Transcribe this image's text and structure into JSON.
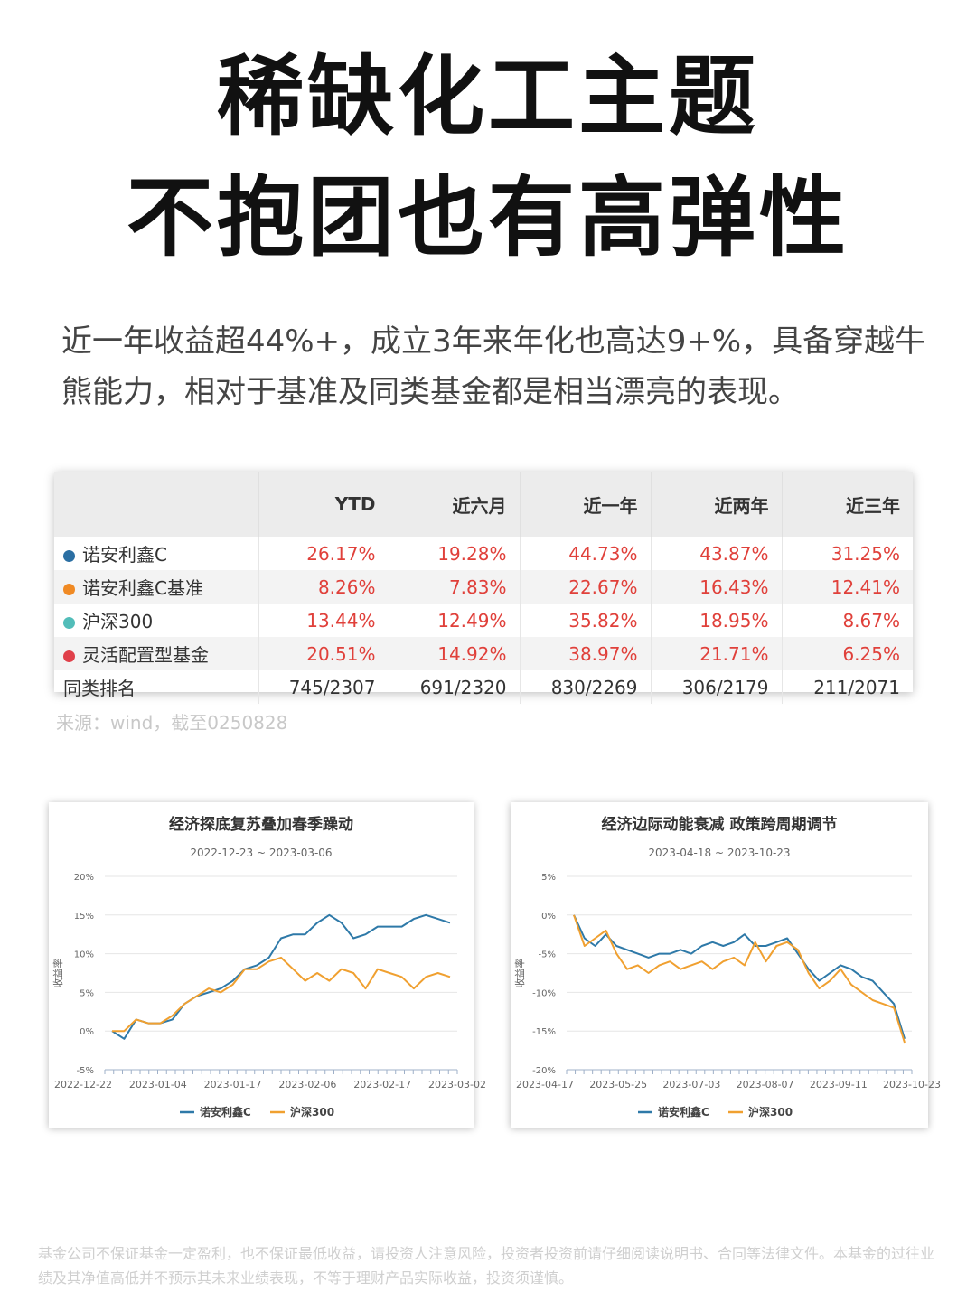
{
  "title": {
    "line1": "稀缺化工主题",
    "line2": "不抱团也有高弹性"
  },
  "intro": "近一年收益超44%+，成立3年来年化也高达9+%，具备穿越牛熊能力，相对于基准及同类基金都是相当漂亮的表现。",
  "table": {
    "headers": [
      "",
      "YTD",
      "近六月",
      "近一年",
      "近两年",
      "近三年"
    ],
    "rows": [
      {
        "name": "诺安利鑫C",
        "color": "#2b6fa3",
        "values": [
          "26.17%",
          "19.28%",
          "44.73%",
          "43.87%",
          "31.25%"
        ]
      },
      {
        "name": "诺安利鑫C基准",
        "color": "#f08a24",
        "values": [
          "8.26%",
          "7.83%",
          "22.67%",
          "16.43%",
          "12.41%"
        ]
      },
      {
        "name": "沪深300",
        "color": "#52bdb9",
        "values": [
          "13.44%",
          "12.49%",
          "35.82%",
          "18.95%",
          "8.67%"
        ]
      },
      {
        "name": "灵活配置型基金",
        "color": "#e0404a",
        "values": [
          "20.51%",
          "14.92%",
          "38.97%",
          "21.71%",
          "6.25%"
        ]
      }
    ],
    "rank": {
      "name": "同类排名",
      "values": [
        "745/2307",
        "691/2320",
        "830/2269",
        "306/2179",
        "211/2071"
      ]
    }
  },
  "source": "来源：wind，截至0250828",
  "chart_data": [
    {
      "type": "line",
      "title": "经济探底复苏叠加春季躁动",
      "subtitle": "2022-12-23 ~ 2023-03-06",
      "ylabel": "收益率",
      "ylim": [
        -5,
        20
      ],
      "yticks": [
        "20%",
        "15%",
        "10%",
        "5%",
        "0%",
        "-5%"
      ],
      "xticks": [
        "2022-12-22",
        "2023-01-04",
        "2023-01-17",
        "2023-02-06",
        "2023-02-17",
        "2023-03-02"
      ],
      "series": [
        {
          "name": "诺安利鑫C",
          "color": "#2e79a8",
          "values": [
            0,
            -1,
            1.5,
            1,
            1,
            1.5,
            3.5,
            4.5,
            5,
            5.5,
            6.5,
            8,
            8.5,
            9.5,
            12,
            12.5,
            12.5,
            14,
            15,
            14,
            12,
            12.5,
            13.5,
            13.5,
            13.5,
            14.5,
            15,
            14.5,
            14
          ]
        },
        {
          "name": "沪深300",
          "color": "#f0a030",
          "values": [
            0,
            0,
            1.5,
            1,
            1,
            2,
            3.5,
            4.5,
            5.5,
            5,
            6,
            8,
            8,
            9,
            9.5,
            8,
            6.5,
            7.5,
            6.5,
            8,
            7.5,
            5.5,
            8,
            7.5,
            7,
            5.5,
            7,
            7.5,
            7
          ]
        }
      ]
    },
    {
      "type": "line",
      "title": "经济边际动能衰减 政策跨周期调节",
      "subtitle": "2023-04-18 ~ 2023-10-23",
      "ylabel": "收益率",
      "ylim": [
        -20,
        5
      ],
      "yticks": [
        "5%",
        "0%",
        "-5%",
        "-10%",
        "-15%",
        "-20%"
      ],
      "xticks": [
        "2023-04-17",
        "2023-05-25",
        "2023-07-03",
        "2023-08-07",
        "2023-09-11",
        "2023-10-23"
      ],
      "series": [
        {
          "name": "诺安利鑫C",
          "color": "#2e79a8",
          "values": [
            0,
            -3,
            -4,
            -2.5,
            -4,
            -4.5,
            -5,
            -5.5,
            -5,
            -5,
            -4.5,
            -5,
            -4,
            -3.5,
            -4,
            -3.5,
            -2.5,
            -4,
            -4,
            -3.5,
            -3,
            -5,
            -7,
            -8.5,
            -7.5,
            -6.5,
            -7,
            -8,
            -8.5,
            -10,
            -11.5,
            -16
          ]
        },
        {
          "name": "沪深300",
          "color": "#f0a030",
          "values": [
            0,
            -4,
            -3,
            -2,
            -5,
            -7,
            -6.5,
            -7.5,
            -6.5,
            -6,
            -7,
            -6.5,
            -6,
            -7,
            -6,
            -5.5,
            -6.5,
            -3.5,
            -6,
            -4,
            -3.5,
            -4.5,
            -7.5,
            -9.5,
            -8.5,
            -7,
            -9,
            -10,
            -11,
            -11.5,
            -12,
            -16.5
          ]
        }
      ]
    }
  ],
  "footer": "基金公司不保证基金一定盈利，也不保证最低收益，请投资人注意风险，投资者投资前请仔细阅读说明书、合同等法律文件。本基金的过往业绩及其净值高低并不预示其未来业绩表现，不等于理财产品实际收益，投资须谨慎。"
}
